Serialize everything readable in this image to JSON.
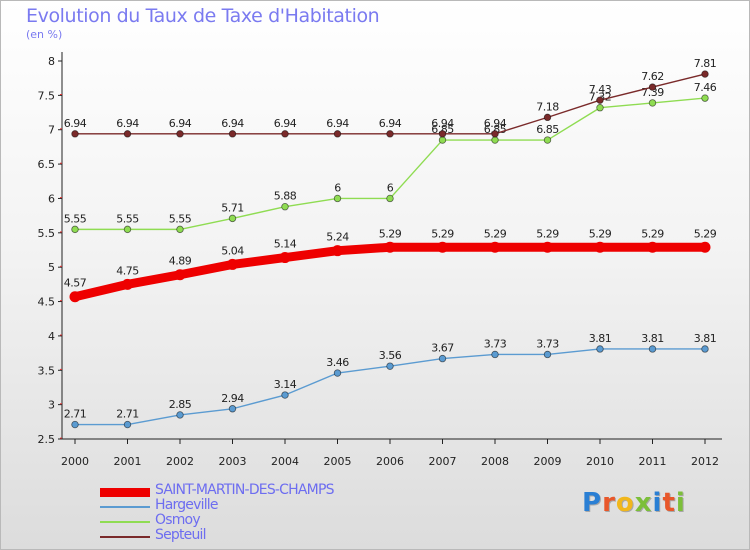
{
  "header": {
    "title": "Evolution du Taux de Taxe d'Habitation",
    "unit": "(en %)"
  },
  "logo": {
    "text": "Proxiti",
    "letter_colors": [
      "#2a7fd4",
      "#e8572a",
      "#f1b71c",
      "#7cbf3a",
      "#2a7fd4",
      "#e8572a",
      "#7cbf3a"
    ]
  },
  "chart_data": {
    "type": "line",
    "title": "Evolution du Taux de Taxe d'Habitation",
    "xlabel": "",
    "ylabel": "(en %)",
    "x": [
      "2000",
      "2001",
      "2002",
      "2003",
      "2004",
      "2005",
      "2006",
      "2007",
      "2008",
      "2009",
      "2010",
      "2011",
      "2012"
    ],
    "yticks": [
      "2.5",
      "3",
      "3.5",
      "4",
      "4.5",
      "5",
      "5.5",
      "6",
      "6.5",
      "7",
      "7.5",
      "8"
    ],
    "ylim": [
      2.5,
      8
    ],
    "grid": false,
    "legend_position": "bottom-left",
    "series": [
      {
        "name": "SAINT-MARTIN-DES-CHAMPS",
        "color": "#ee0000",
        "emphasis": true,
        "values": [
          4.57,
          4.75,
          4.89,
          5.04,
          5.14,
          5.24,
          5.29,
          5.29,
          5.29,
          5.29,
          5.29,
          5.29,
          5.29
        ],
        "labels": [
          "4.57",
          "4.75",
          "4.89",
          "5.04",
          "5.14",
          "5.24",
          "5.29",
          "5.29",
          "5.29",
          "5.29",
          "5.29",
          "5.29",
          "5.29"
        ]
      },
      {
        "name": "Hargeville",
        "color": "#5b9bd1",
        "emphasis": false,
        "values": [
          2.71,
          2.71,
          2.85,
          2.94,
          3.14,
          3.46,
          3.56,
          3.67,
          3.73,
          3.73,
          3.81,
          3.81,
          3.81
        ],
        "labels": [
          "2.71",
          "2.71",
          "2.85",
          "2.94",
          "3.14",
          "3.46",
          "3.56",
          "3.67",
          "3.73",
          "3.73",
          "3.81",
          "3.81",
          "3.81"
        ]
      },
      {
        "name": "Osmoy",
        "color": "#8fdc52",
        "emphasis": false,
        "values": [
          5.55,
          5.55,
          5.55,
          5.71,
          5.88,
          6,
          6,
          6.85,
          6.85,
          6.85,
          7.32,
          7.39,
          7.46
        ],
        "labels": [
          "5.55",
          "5.55",
          "5.55",
          "5.71",
          "5.88",
          "6",
          "6",
          "6.85",
          "6.85",
          "6.85",
          "7.32",
          "7.39",
          "7.46"
        ]
      },
      {
        "name": "Septeuil",
        "color": "#7a2a2a",
        "emphasis": false,
        "values": [
          6.94,
          6.94,
          6.94,
          6.94,
          6.94,
          6.94,
          6.94,
          6.94,
          6.94,
          7.18,
          7.43,
          7.62,
          7.81
        ],
        "labels": [
          "6.94",
          "6.94",
          "6.94",
          "6.94",
          "6.94",
          "6.94",
          "6.94",
          "6.94",
          "6.94",
          "7.18",
          "7.43",
          "7.62",
          "7.81"
        ]
      }
    ]
  }
}
